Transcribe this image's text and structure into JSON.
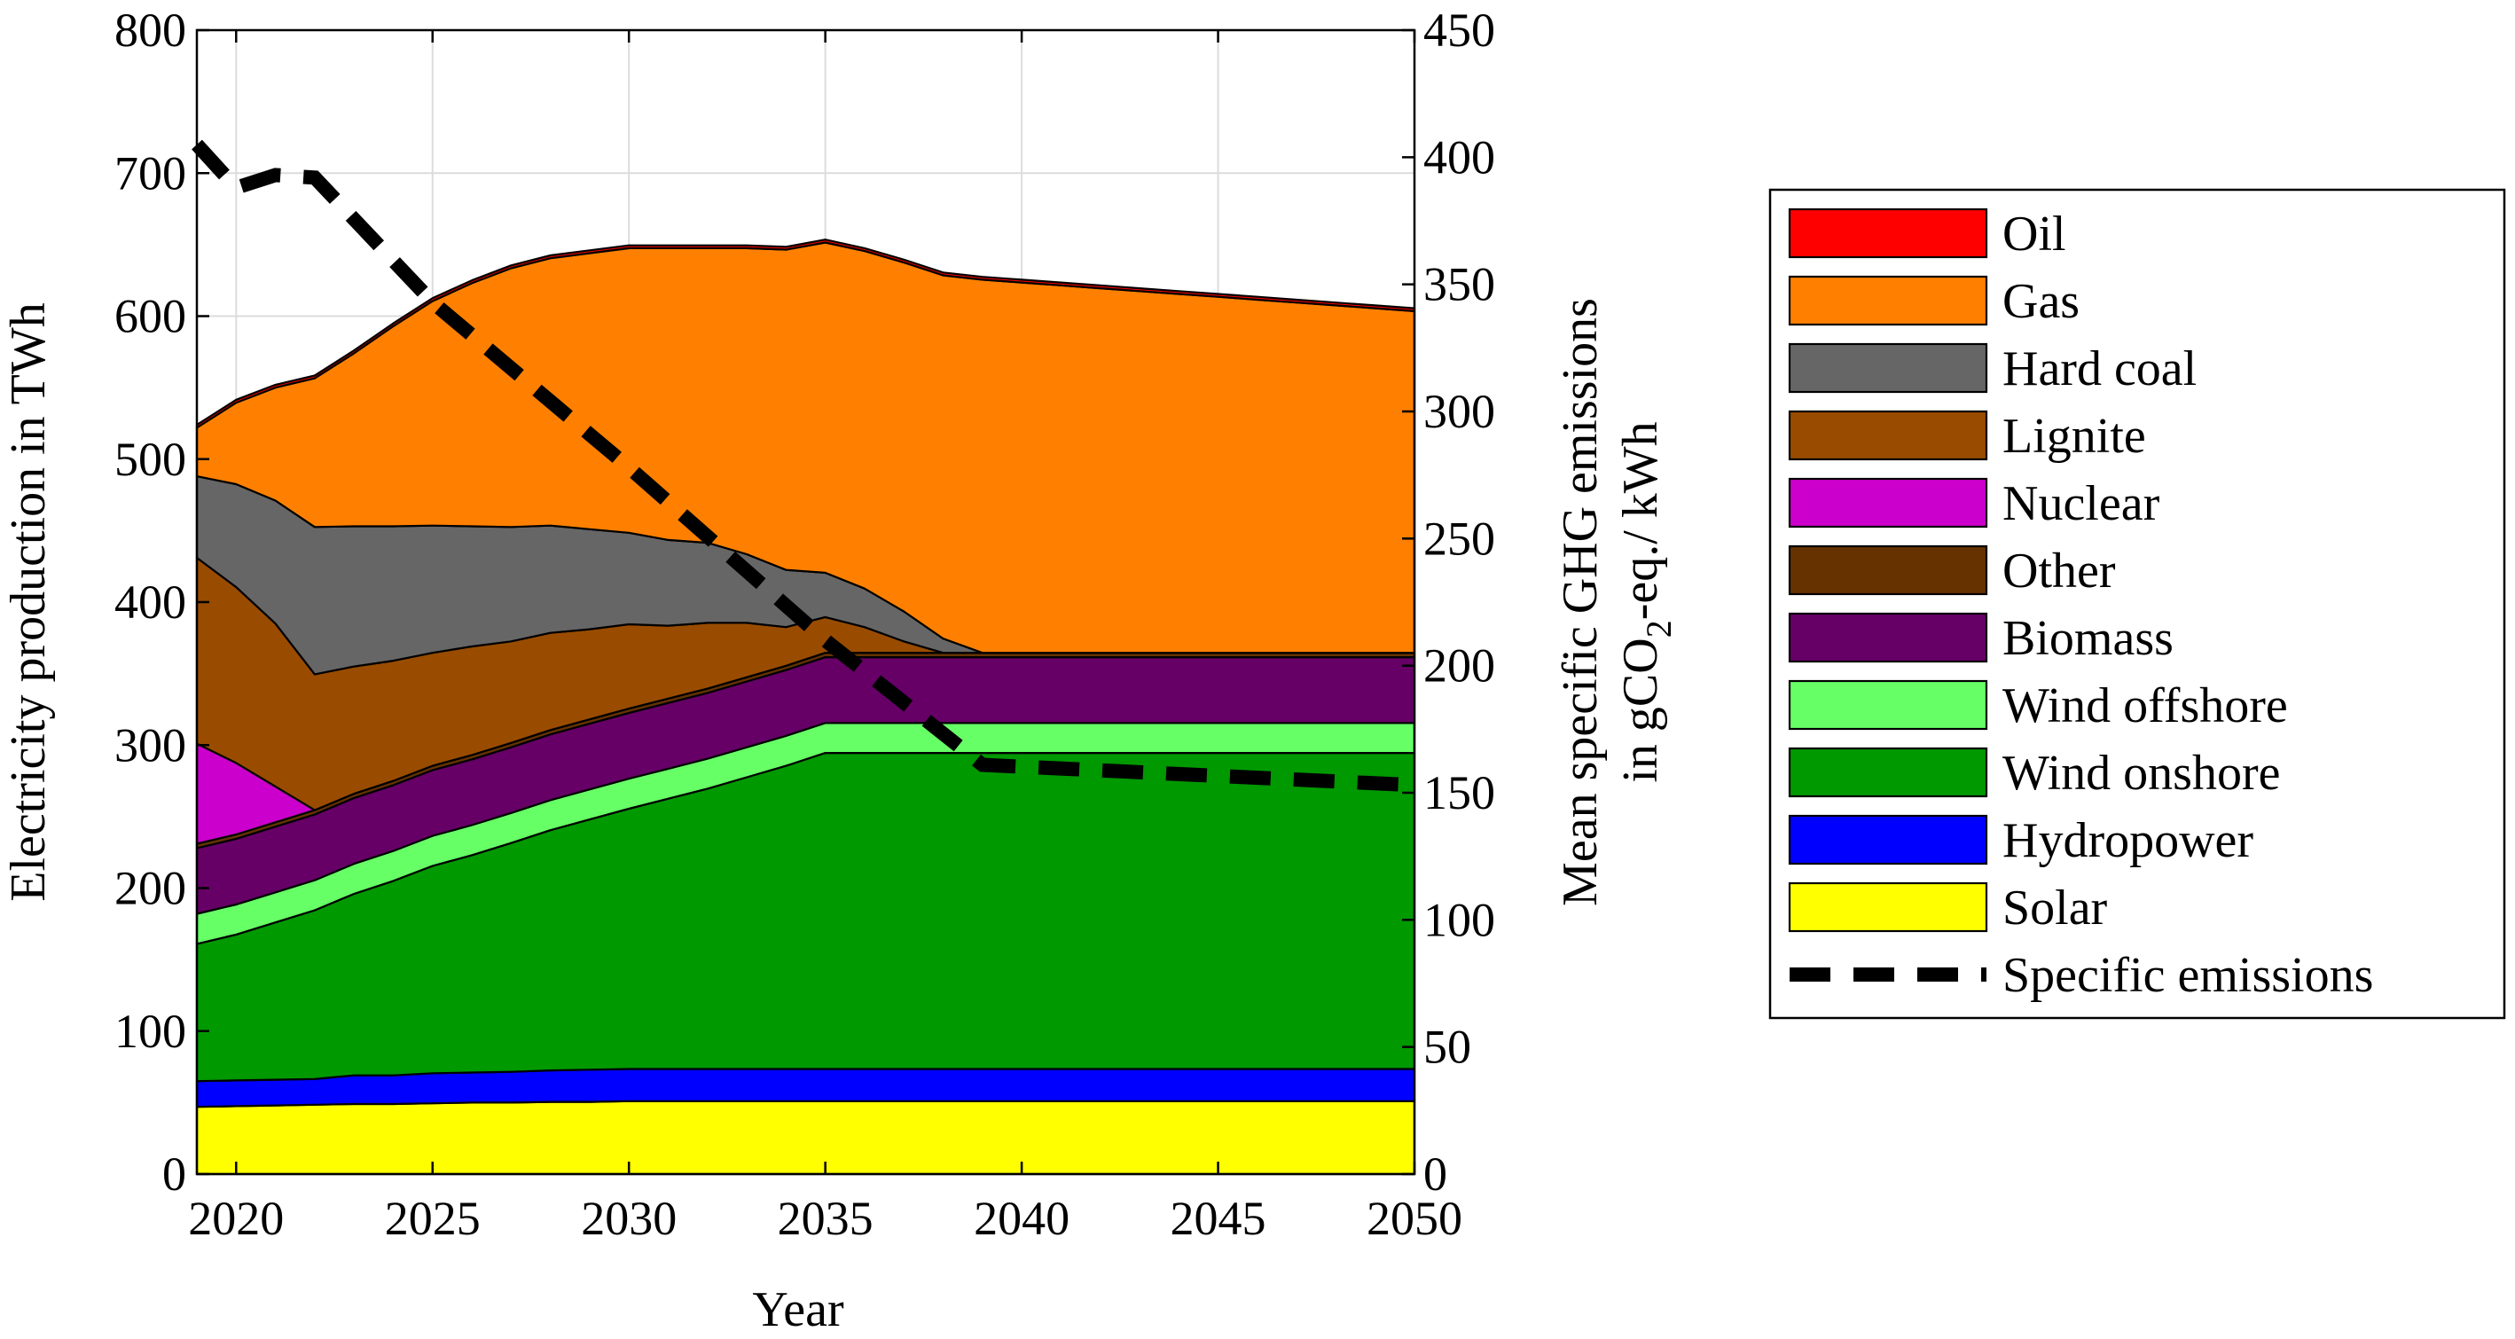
{
  "chart_data": {
    "type": "area",
    "stacked": true,
    "x": [
      2019,
      2020,
      2021,
      2022,
      2023,
      2024,
      2025,
      2026,
      2027,
      2028,
      2029,
      2030,
      2031,
      2032,
      2033,
      2034,
      2035,
      2036,
      2037,
      2038,
      2039,
      2040,
      2041,
      2042,
      2043,
      2044,
      2045,
      2046,
      2047,
      2048,
      2049,
      2050
    ],
    "xlabel": "Year",
    "ylabel_left": "Electricity production in TWh",
    "ylabel_right_line1": "Mean specific GHG emissions",
    "ylabel_right_line2_prefix": "in gCO",
    "ylabel_right_line2_sub": "2",
    "ylabel_right_line2_suffix": "-eq./ kWh",
    "xlim": [
      2019,
      2050
    ],
    "ylim_left": [
      0,
      800
    ],
    "ylim_right": [
      0,
      450
    ],
    "x_ticks": [
      "2020",
      "2025",
      "2030",
      "2035",
      "2040",
      "2045",
      "2050"
    ],
    "y_ticks_left": [
      "0",
      "100",
      "200",
      "300",
      "400",
      "500",
      "600",
      "700",
      "800"
    ],
    "y_ticks_right": [
      "0",
      "50",
      "100",
      "150",
      "200",
      "250",
      "300",
      "350",
      "400",
      "450"
    ],
    "grid": true,
    "legend_position": "right",
    "series": [
      {
        "name": "Solar",
        "color": "#ffff00",
        "values": [
          47,
          47.5,
          48,
          48.5,
          49,
          49,
          49.5,
          50,
          50,
          50.5,
          50.5,
          51,
          51,
          51,
          51,
          51,
          51,
          51,
          51,
          51,
          51,
          51,
          51,
          51,
          51,
          51,
          51,
          51,
          51,
          51,
          51,
          51
        ]
      },
      {
        "name": "Hydropower",
        "color": "#0000ff",
        "values": [
          18,
          18,
          18,
          18,
          20,
          20,
          21,
          21,
          21.5,
          22,
          22.5,
          22.5,
          22.5,
          22.5,
          22.5,
          22.5,
          22.5,
          22.5,
          22.5,
          22.5,
          22.5,
          22.5,
          22.5,
          22.5,
          22.5,
          22.5,
          22.5,
          22.5,
          22.5,
          22.5,
          22.5,
          22.5
        ]
      },
      {
        "name": "Wind onshore",
        "color": "#009900",
        "values": [
          96,
          102,
          110,
          118,
          127,
          136,
          145,
          152,
          160,
          168,
          175,
          182,
          189,
          196,
          204,
          212,
          221,
          221,
          221,
          221,
          221,
          221,
          221,
          221,
          221,
          221,
          221,
          221,
          221,
          221,
          221,
          221
        ]
      },
      {
        "name": "Wind offshore",
        "color": "#66ff66",
        "values": [
          21,
          21,
          21,
          21,
          21,
          21,
          21,
          21,
          21,
          21,
          21,
          21,
          21,
          21,
          21,
          21,
          21,
          21,
          21,
          21,
          21,
          21,
          21,
          21,
          21,
          21,
          21,
          21,
          21,
          21,
          21,
          21
        ]
      },
      {
        "name": "Biomass",
        "color": "#660066",
        "values": [
          46,
          46,
          46,
          46,
          46,
          46,
          46,
          46,
          46,
          46,
          46,
          46,
          46,
          46,
          46,
          46,
          46,
          46,
          46,
          46,
          46,
          46,
          46,
          46,
          46,
          46,
          46,
          46,
          46,
          46,
          46,
          46
        ]
      },
      {
        "name": "Other",
        "color": "#663300",
        "values": [
          3,
          3,
          3,
          3,
          3,
          3,
          3,
          3,
          3,
          3,
          3,
          3,
          3,
          3,
          3,
          3,
          3,
          3,
          3,
          3,
          3,
          3,
          3,
          3,
          3,
          3,
          3,
          3,
          3,
          3,
          3,
          3
        ]
      },
      {
        "name": "Nuclear",
        "color": "#cc00cc",
        "values": [
          70,
          50,
          25,
          0,
          0,
          0,
          0,
          0,
          0,
          0,
          0,
          0,
          0,
          0,
          0,
          0,
          0,
          0,
          0,
          0,
          0,
          0,
          0,
          0,
          0,
          0,
          0,
          0,
          0,
          0,
          0,
          0
        ]
      },
      {
        "name": "Lignite",
        "color": "#994c00",
        "values": [
          130,
          123,
          114,
          95,
          89,
          84,
          79,
          76,
          71,
          68,
          63,
          59,
          51,
          46,
          38,
          27,
          25,
          18,
          8,
          0,
          0,
          0,
          0,
          0,
          0,
          0,
          0,
          0,
          0,
          0,
          0,
          0
        ]
      },
      {
        "name": "Hard coal",
        "color": "#666666",
        "values": [
          57,
          72,
          86,
          103,
          98,
          94,
          89,
          84,
          80,
          75,
          70,
          64,
          60,
          56,
          48,
          40,
          31,
          27,
          21,
          10,
          0,
          0,
          0,
          0,
          0,
          0,
          0,
          0,
          0,
          0,
          0,
          0
        ]
      },
      {
        "name": "Gas",
        "color": "#ff8000",
        "values": [
          34,
          57,
          79,
          104,
          121,
          140,
          157,
          170,
          181,
          187,
          193,
          199,
          204,
          206,
          214,
          224,
          231,
          236,
          244,
          254,
          261,
          259,
          257,
          255,
          253,
          251,
          249,
          247,
          245,
          243,
          241,
          239
        ]
      },
      {
        "name": "Oil",
        "color": "#ff0000",
        "values": [
          2,
          2,
          2,
          2,
          2,
          2,
          2,
          2,
          2,
          2,
          2,
          2,
          2,
          2,
          2,
          2,
          2,
          2,
          2,
          2,
          2,
          2,
          2,
          2,
          2,
          2,
          2,
          2,
          2,
          2,
          2,
          2
        ]
      }
    ],
    "line_series": {
      "name": "Specific emissions",
      "axis": "right",
      "x": [
        2019,
        2020,
        2021,
        2022,
        2025,
        2030,
        2035,
        2039,
        2050
      ],
      "values": [
        405,
        388,
        393,
        392,
        343,
        278,
        210,
        161,
        153
      ]
    },
    "legend_order": [
      "Oil",
      "Gas",
      "Hard coal",
      "Lignite",
      "Nuclear",
      "Other",
      "Biomass",
      "Wind offshore",
      "Wind onshore",
      "Hydropower",
      "Solar",
      "Specific emissions"
    ]
  }
}
